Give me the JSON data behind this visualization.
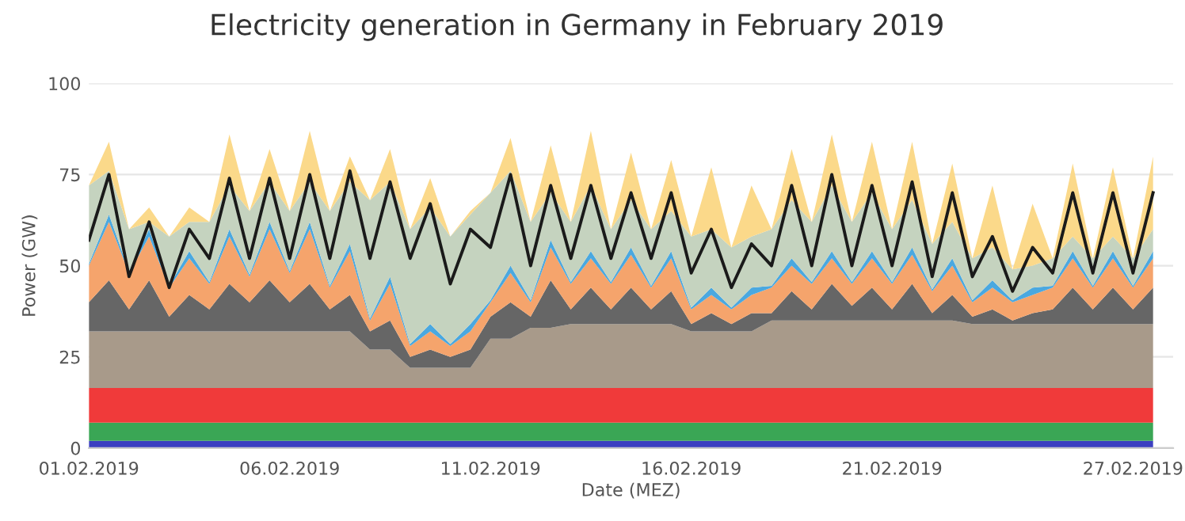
{
  "chart_data": {
    "type": "area",
    "stacked": true,
    "title": "Electricity generation in Germany in February 2019",
    "xlabel": "Date (MEZ)",
    "ylabel": "Power (GW)",
    "x": [
      "2019-02-01T00:00",
      "2019-02-01T12:00",
      "2019-02-02T00:00",
      "2019-02-02T12:00",
      "2019-02-03T00:00",
      "2019-02-03T12:00",
      "2019-02-04T00:00",
      "2019-02-04T12:00",
      "2019-02-05T00:00",
      "2019-02-05T12:00",
      "2019-02-06T00:00",
      "2019-02-06T12:00",
      "2019-02-07T00:00",
      "2019-02-07T12:00",
      "2019-02-08T00:00",
      "2019-02-08T12:00",
      "2019-02-09T00:00",
      "2019-02-09T12:00",
      "2019-02-10T00:00",
      "2019-02-10T12:00",
      "2019-02-11T00:00",
      "2019-02-11T12:00",
      "2019-02-12T00:00",
      "2019-02-12T12:00",
      "2019-02-13T00:00",
      "2019-02-13T12:00",
      "2019-02-14T00:00",
      "2019-02-14T12:00",
      "2019-02-15T00:00",
      "2019-02-15T12:00",
      "2019-02-16T00:00",
      "2019-02-16T12:00",
      "2019-02-17T00:00",
      "2019-02-17T12:00",
      "2019-02-18T00:00",
      "2019-02-18T12:00",
      "2019-02-19T00:00",
      "2019-02-19T12:00",
      "2019-02-20T00:00",
      "2019-02-20T12:00",
      "2019-02-21T00:00",
      "2019-02-21T12:00",
      "2019-02-22T00:00",
      "2019-02-22T12:00",
      "2019-02-23T00:00",
      "2019-02-23T12:00",
      "2019-02-24T00:00",
      "2019-02-24T12:00",
      "2019-02-25T00:00",
      "2019-02-25T12:00",
      "2019-02-26T00:00",
      "2019-02-26T12:00",
      "2019-02-27T00:00",
      "2019-02-27T12:00"
    ],
    "series": [
      {
        "color": "#3b3fc0",
        "values": [
          2,
          2,
          2,
          2,
          2,
          2,
          2,
          2,
          2,
          2,
          2,
          2,
          2,
          2,
          2,
          2,
          2,
          2,
          2,
          2,
          2,
          2,
          2,
          2,
          2,
          2,
          2,
          2,
          2,
          2,
          2,
          2,
          2,
          2,
          2,
          2,
          2,
          2,
          2,
          2,
          2,
          2,
          2,
          2,
          2,
          2,
          2,
          2,
          2,
          2,
          2,
          2,
          2,
          2
        ]
      },
      {
        "color": "#3aa655",
        "values": [
          5,
          5,
          5,
          5,
          5,
          5,
          5,
          5,
          5,
          5,
          5,
          5,
          5,
          5,
          5,
          5,
          5,
          5,
          5,
          5,
          5,
          5,
          5,
          5,
          5,
          5,
          5,
          5,
          5,
          5,
          5,
          5,
          5,
          5,
          5,
          5,
          5,
          5,
          5,
          5,
          5,
          5,
          5,
          5,
          5,
          5,
          5,
          5,
          5,
          5,
          5,
          5,
          5,
          5
        ]
      },
      {
        "color": "#f03a3a",
        "values": [
          9.5,
          9.5,
          9.5,
          9.5,
          9.5,
          9.5,
          9.5,
          9.5,
          9.5,
          9.5,
          9.5,
          9.5,
          9.5,
          9.5,
          9.5,
          9.5,
          9.5,
          9.5,
          9.5,
          9.5,
          9.5,
          9.5,
          9.5,
          9.5,
          9.5,
          9.5,
          9.5,
          9.5,
          9.5,
          9.5,
          9.5,
          9.5,
          9.5,
          9.5,
          9.5,
          9.5,
          9.5,
          9.5,
          9.5,
          9.5,
          9.5,
          9.5,
          9.5,
          9.5,
          9.5,
          9.5,
          9.5,
          9.5,
          9.5,
          9.5,
          9.5,
          9.5,
          9.5,
          9.5
        ]
      },
      {
        "color": "#a89a8a",
        "values": [
          15.5,
          15.5,
          15.5,
          15.5,
          15.5,
          15.5,
          15.5,
          15.5,
          15.5,
          15.5,
          15.5,
          15.5,
          15.5,
          15.5,
          10.5,
          10.5,
          5.5,
          5.5,
          5.5,
          5.5,
          13.5,
          13.5,
          16.5,
          16.5,
          17.5,
          17.5,
          17.5,
          17.5,
          17.5,
          17.5,
          15.5,
          15.5,
          15.5,
          15.5,
          18.5,
          18.5,
          18.5,
          18.5,
          18.5,
          18.5,
          18.5,
          18.5,
          18.5,
          18.5,
          17.5,
          17.5,
          17.5,
          17.5,
          17.5,
          17.5,
          17.5,
          17.5,
          17.5,
          17.5
        ]
      },
      {
        "color": "#666666",
        "values": [
          8,
          14,
          6,
          14,
          4,
          10,
          6,
          13,
          8,
          14,
          8,
          13,
          6,
          10,
          5,
          8,
          3,
          5,
          3,
          5,
          6,
          10,
          3,
          13,
          4,
          10,
          4,
          10,
          4,
          9,
          2,
          5,
          2,
          5,
          2,
          8,
          3,
          10,
          4,
          9,
          3,
          10,
          2,
          7,
          2,
          4,
          1,
          3,
          4,
          10,
          4,
          10,
          4,
          10
        ]
      },
      {
        "color": "#f5a46c",
        "values": [
          10,
          16,
          10,
          12,
          8,
          10,
          7,
          13,
          7,
          14,
          8,
          15,
          6,
          12,
          3,
          10,
          3,
          5,
          3,
          5,
          4,
          8,
          4,
          9,
          7,
          8,
          7,
          9,
          6,
          9,
          4,
          5,
          4,
          5,
          7,
          7,
          7,
          7,
          6,
          8,
          7,
          8,
          6,
          8,
          4,
          6,
          5,
          5,
          6,
          8,
          6,
          8,
          6,
          8
        ]
      },
      {
        "color": "#4aa8e0",
        "values": [
          0.5,
          2,
          0.5,
          2,
          0.5,
          2,
          0.5,
          2,
          0.5,
          2,
          0.5,
          2,
          0.5,
          2,
          0.5,
          2,
          0.5,
          2,
          0.5,
          2,
          0.5,
          2,
          0.5,
          2,
          0.5,
          2,
          0.5,
          2,
          0.5,
          2,
          0.5,
          2,
          0.5,
          2,
          0.5,
          2,
          0.5,
          2,
          0.5,
          2,
          0.5,
          2,
          0.5,
          2,
          0.5,
          2,
          0.5,
          2,
          0.5,
          2,
          0.5,
          2,
          0.5,
          2
        ]
      },
      {
        "color": "#c5d3bf",
        "values": [
          21.5,
          12,
          11.5,
          2,
          13.5,
          8,
          16.5,
          12,
          17.5,
          11,
          16.5,
          11,
          20.5,
          17,
          32.5,
          26,
          31.5,
          32,
          29.5,
          30,
          29.5,
          26,
          21.5,
          13,
          16.5,
          18,
          14.5,
          13,
          15.5,
          11,
          19.5,
          16,
          16.5,
          14,
          15.5,
          16,
          16.5,
          18,
          16.5,
          16,
          14.5,
          13,
          12.5,
          10,
          11.5,
          9,
          8.5,
          6,
          7.5,
          4,
          7.5,
          4,
          7.5,
          6
        ]
      },
      {
        "color": "#fbd98a",
        "values": [
          0,
          8,
          0,
          4,
          0,
          4,
          0,
          14,
          0,
          9,
          0,
          14,
          0,
          7,
          0,
          9,
          0,
          8,
          0,
          1,
          0,
          9,
          0,
          13,
          0,
          15,
          0,
          13,
          0,
          14,
          0,
          17,
          0,
          14,
          0,
          14,
          0,
          14,
          0,
          14,
          0,
          16,
          0,
          16,
          0,
          17,
          0,
          17,
          0,
          20,
          0,
          19,
          0,
          20
        ]
      },
      {
        "type": "line",
        "color": "#1a1a1a",
        "values": [
          57,
          75,
          47,
          62,
          44,
          60,
          52,
          74,
          52,
          74,
          52,
          75,
          52,
          76,
          52,
          73,
          52,
          67,
          45,
          60,
          55,
          75,
          50,
          72,
          52,
          72,
          52,
          70,
          52,
          70,
          48,
          60,
          44,
          56,
          50,
          72,
          50,
          75,
          50,
          72,
          50,
          73,
          47,
          70,
          47,
          58,
          43,
          55,
          48,
          70,
          48,
          70,
          48,
          70
        ]
      }
    ],
    "xlim": [
      "2019-02-01",
      "2019-02-28"
    ],
    "xticks": [
      {
        "value": "2019-02-01",
        "label": "01.02.2019"
      },
      {
        "value": "2019-02-06",
        "label": "06.02.2019"
      },
      {
        "value": "2019-02-11",
        "label": "11.02.2019"
      },
      {
        "value": "2019-02-16",
        "label": "16.02.2019"
      },
      {
        "value": "2019-02-21",
        "label": "21.02.2019"
      },
      {
        "value": "2019-02-27",
        "label": "27.02.2019"
      }
    ],
    "ylim": [
      0,
      100
    ],
    "yticks": [
      0,
      25,
      50,
      75,
      100
    ],
    "grid": "y",
    "legend": false
  }
}
